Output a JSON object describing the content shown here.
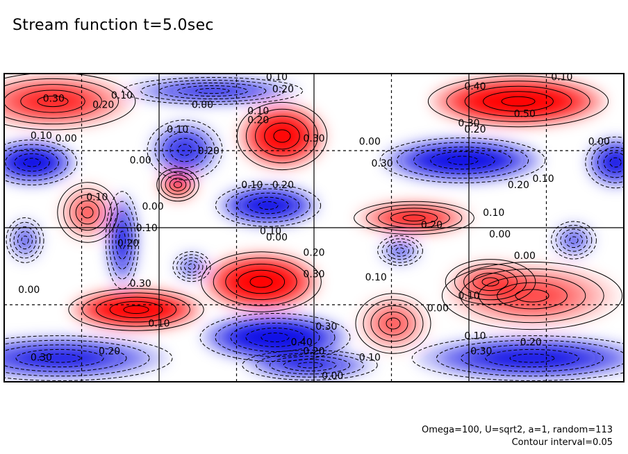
{
  "chart_data": {
    "type": "heatmap",
    "title": "Stream function t=5.0sec",
    "xlabel": "",
    "ylabel": "",
    "colormap": {
      "negative": "#0a0ae6",
      "zero": "#ffffff",
      "positive": "#ff0000"
    },
    "grid": true,
    "contour_labels": [
      {
        "text": "0.30",
        "x": 0.08,
        "y": 0.92
      },
      {
        "text": "0.20",
        "x": 0.16,
        "y": 0.9
      },
      {
        "text": "0.10",
        "x": 0.19,
        "y": 0.93
      },
      {
        "text": "0.10",
        "x": 0.44,
        "y": 0.99
      },
      {
        "text": "0.20",
        "x": 0.45,
        "y": 0.95
      },
      {
        "text": "0.00",
        "x": 0.32,
        "y": 0.9
      },
      {
        "text": "0.10",
        "x": 0.41,
        "y": 0.88
      },
      {
        "text": "0.20",
        "x": 0.41,
        "y": 0.85
      },
      {
        "text": "0.10",
        "x": 0.28,
        "y": 0.82
      },
      {
        "text": "0.20",
        "x": 0.33,
        "y": 0.75
      },
      {
        "text": "0.10",
        "x": 0.06,
        "y": 0.8
      },
      {
        "text": "0.00",
        "x": 0.1,
        "y": 0.79
      },
      {
        "text": "0.00",
        "x": 0.22,
        "y": 0.72
      },
      {
        "text": "0.30",
        "x": 0.5,
        "y": 0.79
      },
      {
        "text": "0.00",
        "x": 0.59,
        "y": 0.78
      },
      {
        "text": "0.30",
        "x": 0.61,
        "y": 0.71
      },
      {
        "text": "0.40",
        "x": 0.76,
        "y": 0.96
      },
      {
        "text": "0.50",
        "x": 0.84,
        "y": 0.87
      },
      {
        "text": "0.10",
        "x": 0.9,
        "y": 0.99
      },
      {
        "text": "0.30",
        "x": 0.75,
        "y": 0.84
      },
      {
        "text": "0.20",
        "x": 0.76,
        "y": 0.82
      },
      {
        "text": "0.00",
        "x": 0.96,
        "y": 0.78
      },
      {
        "text": "0.20",
        "x": 0.83,
        "y": 0.64
      },
      {
        "text": "0.10",
        "x": 0.87,
        "y": 0.66
      },
      {
        "text": "0.10",
        "x": 0.79,
        "y": 0.55
      },
      {
        "text": "0.20",
        "x": 0.69,
        "y": 0.51
      },
      {
        "text": "0.00",
        "x": 0.8,
        "y": 0.48
      },
      {
        "text": "0.00",
        "x": 0.84,
        "y": 0.41
      },
      {
        "text": "0.10",
        "x": 0.4,
        "y": 0.64
      },
      {
        "text": "0.20",
        "x": 0.45,
        "y": 0.64
      },
      {
        "text": "0.10",
        "x": 0.15,
        "y": 0.6
      },
      {
        "text": "0.00",
        "x": 0.24,
        "y": 0.57
      },
      {
        "text": "0.10",
        "x": 0.23,
        "y": 0.5
      },
      {
        "text": "0.20",
        "x": 0.2,
        "y": 0.45
      },
      {
        "text": "0.10",
        "x": 0.43,
        "y": 0.49
      },
      {
        "text": "0.00",
        "x": 0.44,
        "y": 0.47
      },
      {
        "text": "0.20",
        "x": 0.5,
        "y": 0.42
      },
      {
        "text": "0.30",
        "x": 0.5,
        "y": 0.35
      },
      {
        "text": "0.10",
        "x": 0.6,
        "y": 0.34
      },
      {
        "text": "0.00",
        "x": 0.04,
        "y": 0.3
      },
      {
        "text": "0.30",
        "x": 0.22,
        "y": 0.32
      },
      {
        "text": "0.10",
        "x": 0.25,
        "y": 0.19
      },
      {
        "text": "0.00",
        "x": 0.7,
        "y": 0.24
      },
      {
        "text": "0.10",
        "x": 0.75,
        "y": 0.28
      },
      {
        "text": "0.30",
        "x": 0.52,
        "y": 0.18
      },
      {
        "text": "0.40",
        "x": 0.48,
        "y": 0.13
      },
      {
        "text": "0.20",
        "x": 0.5,
        "y": 0.1
      },
      {
        "text": "0.10",
        "x": 0.59,
        "y": 0.08
      },
      {
        "text": "0.00",
        "x": 0.53,
        "y": 0.02
      },
      {
        "text": "0.30",
        "x": 0.06,
        "y": 0.08
      },
      {
        "text": "0.20",
        "x": 0.17,
        "y": 0.1
      },
      {
        "text": "0.10",
        "x": 0.76,
        "y": 0.15
      },
      {
        "text": "0.30",
        "x": 0.77,
        "y": 0.1
      },
      {
        "text": "0.20",
        "x": 0.85,
        "y": 0.13
      }
    ],
    "annotations": [
      "Omega=100, U=sqrt2, a=1, random=113",
      "Contour interval=0.05"
    ]
  }
}
